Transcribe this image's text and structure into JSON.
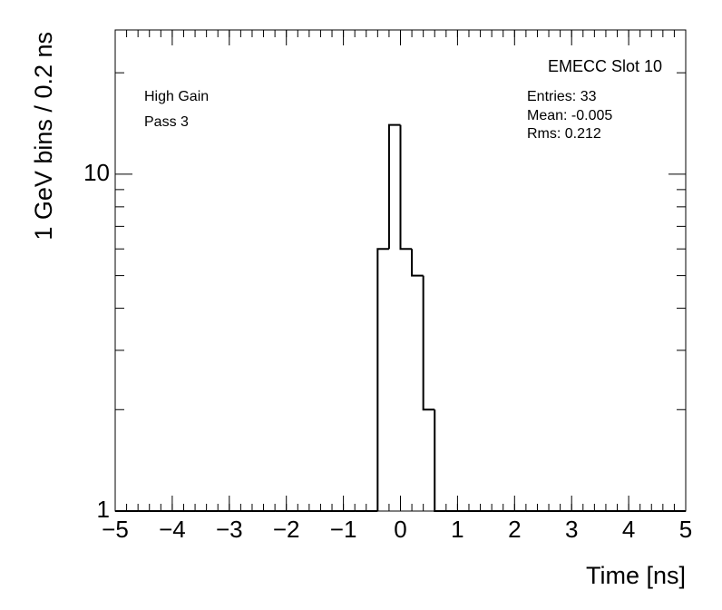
{
  "chart_data": {
    "type": "histogram",
    "title": "EMECC Slot 10",
    "stats": [
      "Entries: 33",
      "Mean: -0.005",
      "Rms: 0.212"
    ],
    "annotations": [
      "High Gain",
      "Pass 3"
    ],
    "xlabel": "Time [ns]",
    "ylabel": "1 GeV bins / 0.2 ns",
    "bins": [
      -5,
      -4.8,
      -4.6,
      -4.4,
      -4.2,
      -4,
      -3.8,
      -3.6,
      -3.4,
      -3.2,
      -3,
      -2.8,
      -2.6,
      -2.4,
      -2.2,
      -2,
      -1.8,
      -1.6,
      -1.4,
      -1.2,
      -1,
      -0.8,
      -0.6,
      -0.4,
      -0.2,
      0,
      0.2,
      0.4,
      0.6,
      0.8,
      1,
      1.2,
      1.4,
      1.6,
      1.8,
      2,
      2.2,
      2.4,
      2.6,
      2.8,
      3,
      3.2,
      3.4,
      3.6,
      3.8,
      4,
      4.2,
      4.4,
      4.6,
      4.8,
      5
    ],
    "values": [
      0,
      0,
      0,
      0,
      0,
      0,
      0,
      0,
      0,
      0,
      0,
      0,
      0,
      0,
      0,
      0,
      0,
      0,
      0,
      0,
      0,
      0,
      0,
      6,
      14,
      6,
      5,
      2,
      0,
      0,
      0,
      0,
      0,
      0,
      0,
      0,
      0,
      0,
      0,
      0,
      0,
      0,
      0,
      0,
      0,
      0,
      0,
      0,
      0,
      0
    ],
    "color": "#000000",
    "xlim": [
      -5,
      5
    ],
    "xticks": [
      {
        "value": -5,
        "label": "−5"
      },
      {
        "value": -4,
        "label": "−4"
      },
      {
        "value": -3,
        "label": "−3"
      },
      {
        "value": -2,
        "label": "−2"
      },
      {
        "value": -1,
        "label": "−1"
      },
      0,
      1,
      2,
      3,
      4,
      5
    ],
    "ylim": [
      1,
      26.8
    ],
    "yticks": [
      1,
      10
    ],
    "yminorticks": [
      2,
      3,
      4,
      5,
      6,
      7,
      8,
      9,
      20
    ],
    "log_y": true,
    "grid": false
  }
}
